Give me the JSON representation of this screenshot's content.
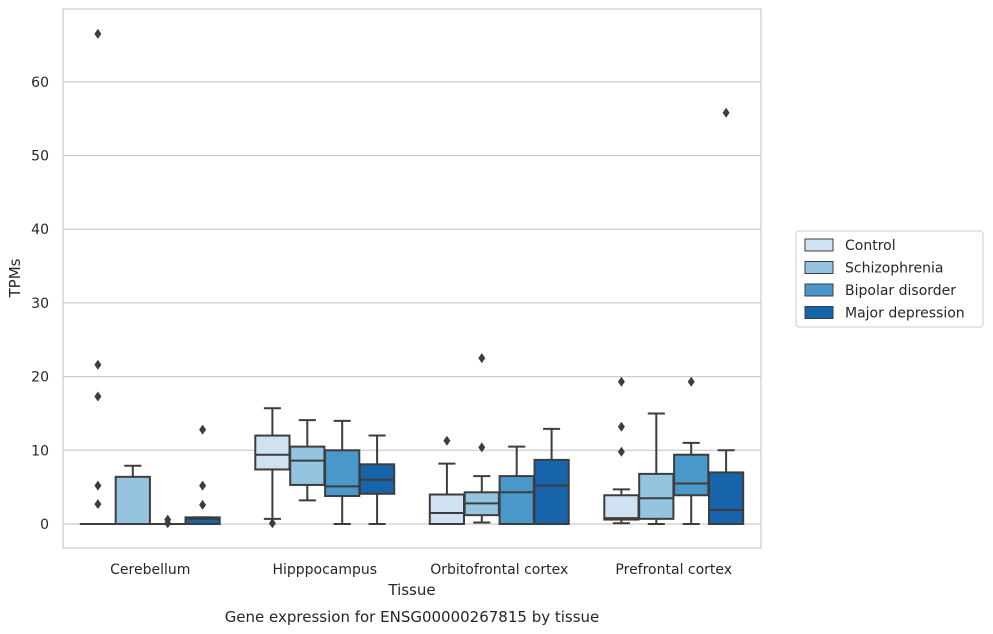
{
  "chart_data": {
    "type": "box",
    "xlabel": "Tissue",
    "ylabel": "TPMs",
    "caption": "Gene expression for ENSG00000267815 by tissue",
    "ylim": [
      -3.2,
      70.3
    ],
    "yticks": [
      0,
      10,
      20,
      30,
      40,
      50,
      60
    ],
    "grid": "horizontal",
    "legend_position": "right",
    "categories": [
      "Cerebellum",
      "Hipppocampus",
      "Orbitofrontal cortex",
      "Prefrontal cortex"
    ],
    "series": [
      {
        "name": "Control",
        "color": "#d0e1f2",
        "boxes": [
          {
            "whislo": 0,
            "q1": 0,
            "med": 0,
            "q3": 0,
            "whishi": 0,
            "fliers": [
              66.5,
              21.6,
              17.3,
              5.2,
              2.7
            ]
          },
          {
            "whislo": 0.7,
            "q1": 7.4,
            "med": 9.4,
            "q3": 12.0,
            "whishi": 15.7,
            "fliers": [
              0.1
            ]
          },
          {
            "whislo": 0,
            "q1": 0,
            "med": 1.5,
            "q3": 4.0,
            "whishi": 8.2,
            "fliers": [
              11.3
            ]
          },
          {
            "whislo": 0.1,
            "q1": 0.6,
            "med": 0.8,
            "q3": 3.9,
            "whishi": 4.7,
            "fliers": [
              19.3,
              13.2,
              9.8
            ]
          }
        ]
      },
      {
        "name": "Schizophrenia",
        "color": "#94c4df",
        "boxes": [
          {
            "whislo": 0,
            "q1": 0,
            "med": 0,
            "q3": 6.4,
            "whishi": 7.9,
            "fliers": []
          },
          {
            "whislo": 3.2,
            "q1": 5.3,
            "med": 8.6,
            "q3": 10.5,
            "whishi": 14.1,
            "fliers": []
          },
          {
            "whislo": 0.2,
            "q1": 1.2,
            "med": 2.8,
            "q3": 4.3,
            "whishi": 6.5,
            "fliers": [
              22.5,
              10.4
            ]
          },
          {
            "whislo": 0,
            "q1": 0.7,
            "med": 3.5,
            "q3": 6.8,
            "whishi": 15.0,
            "fliers": []
          }
        ]
      },
      {
        "name": "Bipolar disorder",
        "color": "#4a98c9",
        "boxes": [
          {
            "whislo": 0,
            "q1": 0,
            "med": 0,
            "q3": 0,
            "whishi": 0,
            "fliers": [
              0.6,
              0.1
            ]
          },
          {
            "whislo": 0,
            "q1": 3.8,
            "med": 5.1,
            "q3": 10.0,
            "whishi": 14.0,
            "fliers": []
          },
          {
            "whislo": 0,
            "q1": 0,
            "med": 4.3,
            "q3": 6.5,
            "whishi": 10.5,
            "fliers": []
          },
          {
            "whislo": 0,
            "q1": 3.9,
            "med": 5.5,
            "q3": 9.4,
            "whishi": 11.0,
            "fliers": [
              19.3
            ]
          }
        ]
      },
      {
        "name": "Major depression",
        "color": "#1764ab",
        "boxes": [
          {
            "whislo": 0,
            "q1": 0,
            "med": 0.7,
            "q3": 0.9,
            "whishi": 0.9,
            "fliers": [
              12.8,
              5.2,
              2.6
            ]
          },
          {
            "whislo": 0,
            "q1": 4.1,
            "med": 6.0,
            "q3": 8.1,
            "whishi": 12.0,
            "fliers": []
          },
          {
            "whislo": 0,
            "q1": 0,
            "med": 5.2,
            "q3": 8.7,
            "whishi": 12.9,
            "fliers": []
          },
          {
            "whislo": 0,
            "q1": 0,
            "med": 1.9,
            "q3": 7.0,
            "whishi": 10.0,
            "fliers": [
              55.8
            ]
          }
        ]
      }
    ]
  }
}
